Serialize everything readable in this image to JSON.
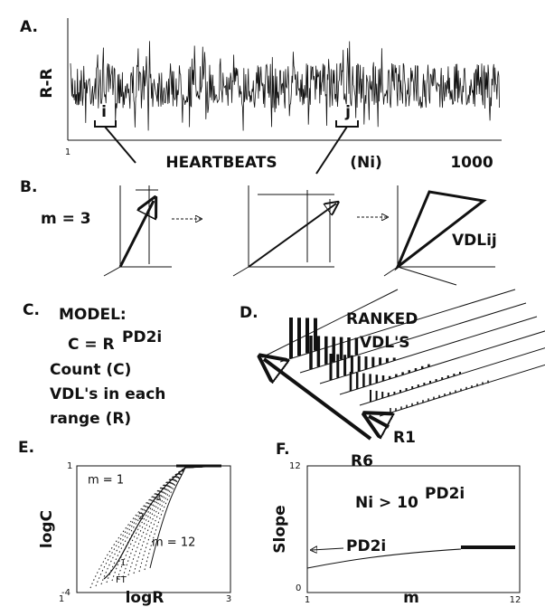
{
  "panels": {
    "a": {
      "label": "A.",
      "y_label": "R-R",
      "x_label": "HEARTBEATS",
      "x_unit": "(Ni)",
      "x_start": "1",
      "x_end": "1000",
      "marker_i": "i",
      "marker_j": "j"
    },
    "b": {
      "label": "B.",
      "m": "m = 3",
      "vector": "VDLij"
    },
    "c": {
      "label": "C.",
      "model": "MODEL:",
      "formula": "C = R",
      "exponent": "PD2i",
      "lines": [
        "Count (C)",
        "VDL's in each",
        "range (R)"
      ]
    },
    "d": {
      "label": "D.",
      "title": [
        "RANKED",
        "VDL'S"
      ],
      "r1": "R1",
      "r6": "R6"
    },
    "e": {
      "label": "E.",
      "y_label": "logC",
      "x_label": "logR",
      "y_top": "1",
      "y_bottom": "-4",
      "x_left": "1",
      "x_right": "3",
      "m1": "m = 1",
      "m12": "m = 12",
      "curve_labels": [
        "3",
        "2",
        "1"
      ],
      "ft": "FT"
    },
    "f": {
      "label": "F.",
      "y_label": "Slope",
      "x_label": "m",
      "y_top": "12",
      "y_bottom": "0",
      "x_left": "1",
      "x_right": "12",
      "formula": "Ni > 10",
      "exponent": "PD2i",
      "pd2i": "PD2i"
    }
  }
}
